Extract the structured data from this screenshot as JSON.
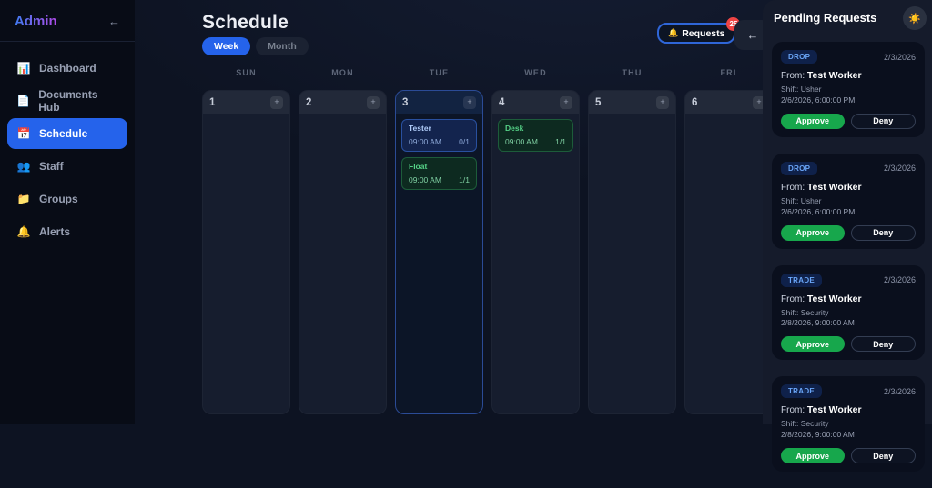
{
  "colors": {
    "accent": "#2563eb",
    "badge-red": "#ef4444",
    "approve-green": "#17a74c",
    "event-blue-bg": "#13244e",
    "event-green-bg": "#0d2a20"
  },
  "sidebar": {
    "brand": "Admin",
    "collapse_icon": "←",
    "items": [
      {
        "icon": "📊",
        "label": "Dashboard",
        "active": false
      },
      {
        "icon": "📄",
        "label": "Documents Hub",
        "active": false
      },
      {
        "icon": "📅",
        "label": "Schedule",
        "active": true
      },
      {
        "icon": "👥",
        "label": "Staff",
        "active": false
      },
      {
        "icon": "📁",
        "label": "Groups",
        "active": false
      },
      {
        "icon": "🔔",
        "label": "Alerts",
        "active": false
      }
    ]
  },
  "header": {
    "title": "Schedule",
    "view_toggle": [
      {
        "label": "Week",
        "active": true
      },
      {
        "label": "Month",
        "active": false
      }
    ],
    "requests_button": {
      "icon": "🔔",
      "label": "Requests",
      "badge": "25"
    },
    "collapse_panel_icon": "←"
  },
  "calendar": {
    "add_icon": "+",
    "days": [
      {
        "name": "SUN",
        "number": "1",
        "today": false,
        "events": []
      },
      {
        "name": "MON",
        "number": "2",
        "today": false,
        "events": []
      },
      {
        "name": "TUE",
        "number": "3",
        "today": true,
        "events": [
          {
            "title": "Tester",
            "time": "09:00 AM",
            "count": "0/1",
            "color": "blue"
          },
          {
            "title": "Float",
            "time": "09:00 AM",
            "count": "1/1",
            "color": "green"
          }
        ]
      },
      {
        "name": "WED",
        "number": "4",
        "today": false,
        "events": [
          {
            "title": "Desk",
            "time": "09:00 AM",
            "count": "1/1",
            "color": "green"
          }
        ]
      },
      {
        "name": "THU",
        "number": "5",
        "today": false,
        "events": []
      },
      {
        "name": "FRI",
        "number": "6",
        "today": false,
        "events": []
      }
    ]
  },
  "pending_panel": {
    "title": "Pending Requests",
    "theme_icon": "☀️",
    "approve_label": "Approve",
    "deny_label": "Deny",
    "from_label": "From:",
    "requests": [
      {
        "type": "DROP",
        "date": "2/3/2026",
        "from_name": "Test Worker",
        "shift": "Shift: Usher",
        "when": "2/6/2026, 6:00:00 PM"
      },
      {
        "type": "DROP",
        "date": "2/3/2026",
        "from_name": "Test Worker",
        "shift": "Shift: Usher",
        "when": "2/6/2026, 6:00:00 PM"
      },
      {
        "type": "TRADE",
        "date": "2/3/2026",
        "from_name": "Test Worker",
        "shift": "Shift: Security",
        "when": "2/8/2026, 9:00:00 AM"
      },
      {
        "type": "TRADE",
        "date": "2/3/2026",
        "from_name": "Test Worker",
        "shift": "Shift: Security",
        "when": "2/8/2026, 9:00:00 AM"
      }
    ]
  }
}
